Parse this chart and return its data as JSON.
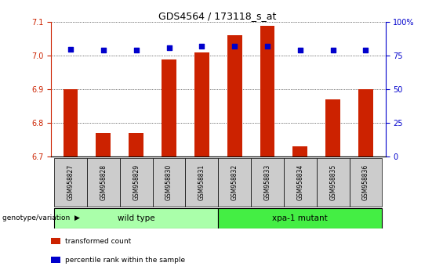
{
  "title": "GDS4564 / 173118_s_at",
  "samples": [
    "GSM958827",
    "GSM958828",
    "GSM958829",
    "GSM958830",
    "GSM958831",
    "GSM958832",
    "GSM958833",
    "GSM958834",
    "GSM958835",
    "GSM958836"
  ],
  "transformed_counts": [
    6.9,
    6.77,
    6.77,
    6.99,
    7.01,
    7.06,
    7.09,
    6.73,
    6.87,
    6.9
  ],
  "percentile_ranks": [
    80,
    79,
    79,
    81,
    82,
    82,
    82,
    79,
    79,
    79
  ],
  "y_min": 6.7,
  "y_max": 7.1,
  "y_ticks": [
    6.7,
    6.8,
    6.9,
    7.0,
    7.1
  ],
  "y2_ticks": [
    0,
    25,
    50,
    75,
    100
  ],
  "bar_color": "#cc2200",
  "dot_color": "#0000cc",
  "wild_type_label": "wild type",
  "mutant_label": "xpa-1 mutant",
  "wild_type_color": "#aaffaa",
  "mutant_color": "#44ee44",
  "genotype_label": "genotype/variation",
  "legend_items": [
    "transformed count",
    "percentile rank within the sample"
  ],
  "legend_colors": [
    "#cc2200",
    "#0000cc"
  ],
  "axis_color_left": "#cc2200",
  "axis_color_right": "#0000cc",
  "xlabel_area_color": "#cccccc"
}
